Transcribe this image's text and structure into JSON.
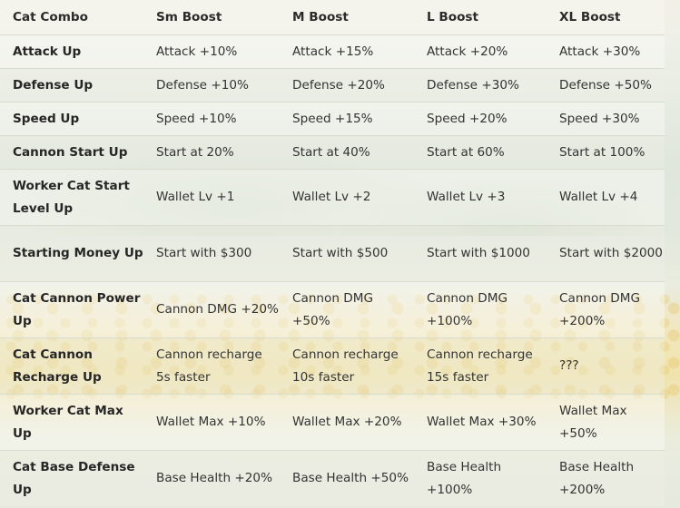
{
  "columns": [
    "Cat Combo",
    "Sm Boost",
    "M Boost",
    "L Boost",
    "XL Boost"
  ],
  "rows": [
    {
      "name": "Attack Up",
      "sm": "Attack +10%",
      "m": "Attack +15%",
      "l": "Attack +20%",
      "xl": "Attack +30%"
    },
    {
      "name": "Defense Up",
      "sm": "Defense +10%",
      "m": "Defense +20%",
      "l": "Defense +30%",
      "xl": "Defense +50%"
    },
    {
      "name": "Speed Up",
      "sm": "Speed +10%",
      "m": "Speed +15%",
      "l": "Speed +20%",
      "xl": "Speed +30%"
    },
    {
      "name": "Cannon Start Up",
      "sm": "Start at 20%",
      "m": "Start at 40%",
      "l": "Start at 60%",
      "xl": "Start at 100%"
    },
    {
      "name": "Worker Cat Start Level Up",
      "sm": "Wallet Lv +1",
      "m": "Wallet Lv +2",
      "l": "Wallet Lv +3",
      "xl": "Wallet Lv +4"
    },
    {
      "name": "Starting Money Up",
      "sm": "Start with $300",
      "m": "Start with $500",
      "l": "Start with $1000",
      "xl": "Start with $2000"
    },
    {
      "name": "Cat Cannon Power Up",
      "sm": "Cannon DMG +20%",
      "m": "Cannon DMG +50%",
      "l": "Cannon DMG +100%",
      "xl": "Cannon DMG +200%"
    },
    {
      "name": "Cat Cannon Recharge Up",
      "sm": "Cannon recharge 5s faster",
      "m": "Cannon recharge 10s faster",
      "l": "Cannon recharge 15s faster",
      "xl": "???"
    },
    {
      "name": "Worker Cat Max Up",
      "sm": "Wallet Max +10%",
      "m": "Wallet Max +20%",
      "l": "Wallet Max +30%",
      "xl": "Wallet Max +50%"
    },
    {
      "name": "Cat Base Defense Up",
      "sm": "Base Health +20%",
      "m": "Base Health +50%",
      "l": "Base Health +100%",
      "xl": "Base Health +200%"
    }
  ]
}
